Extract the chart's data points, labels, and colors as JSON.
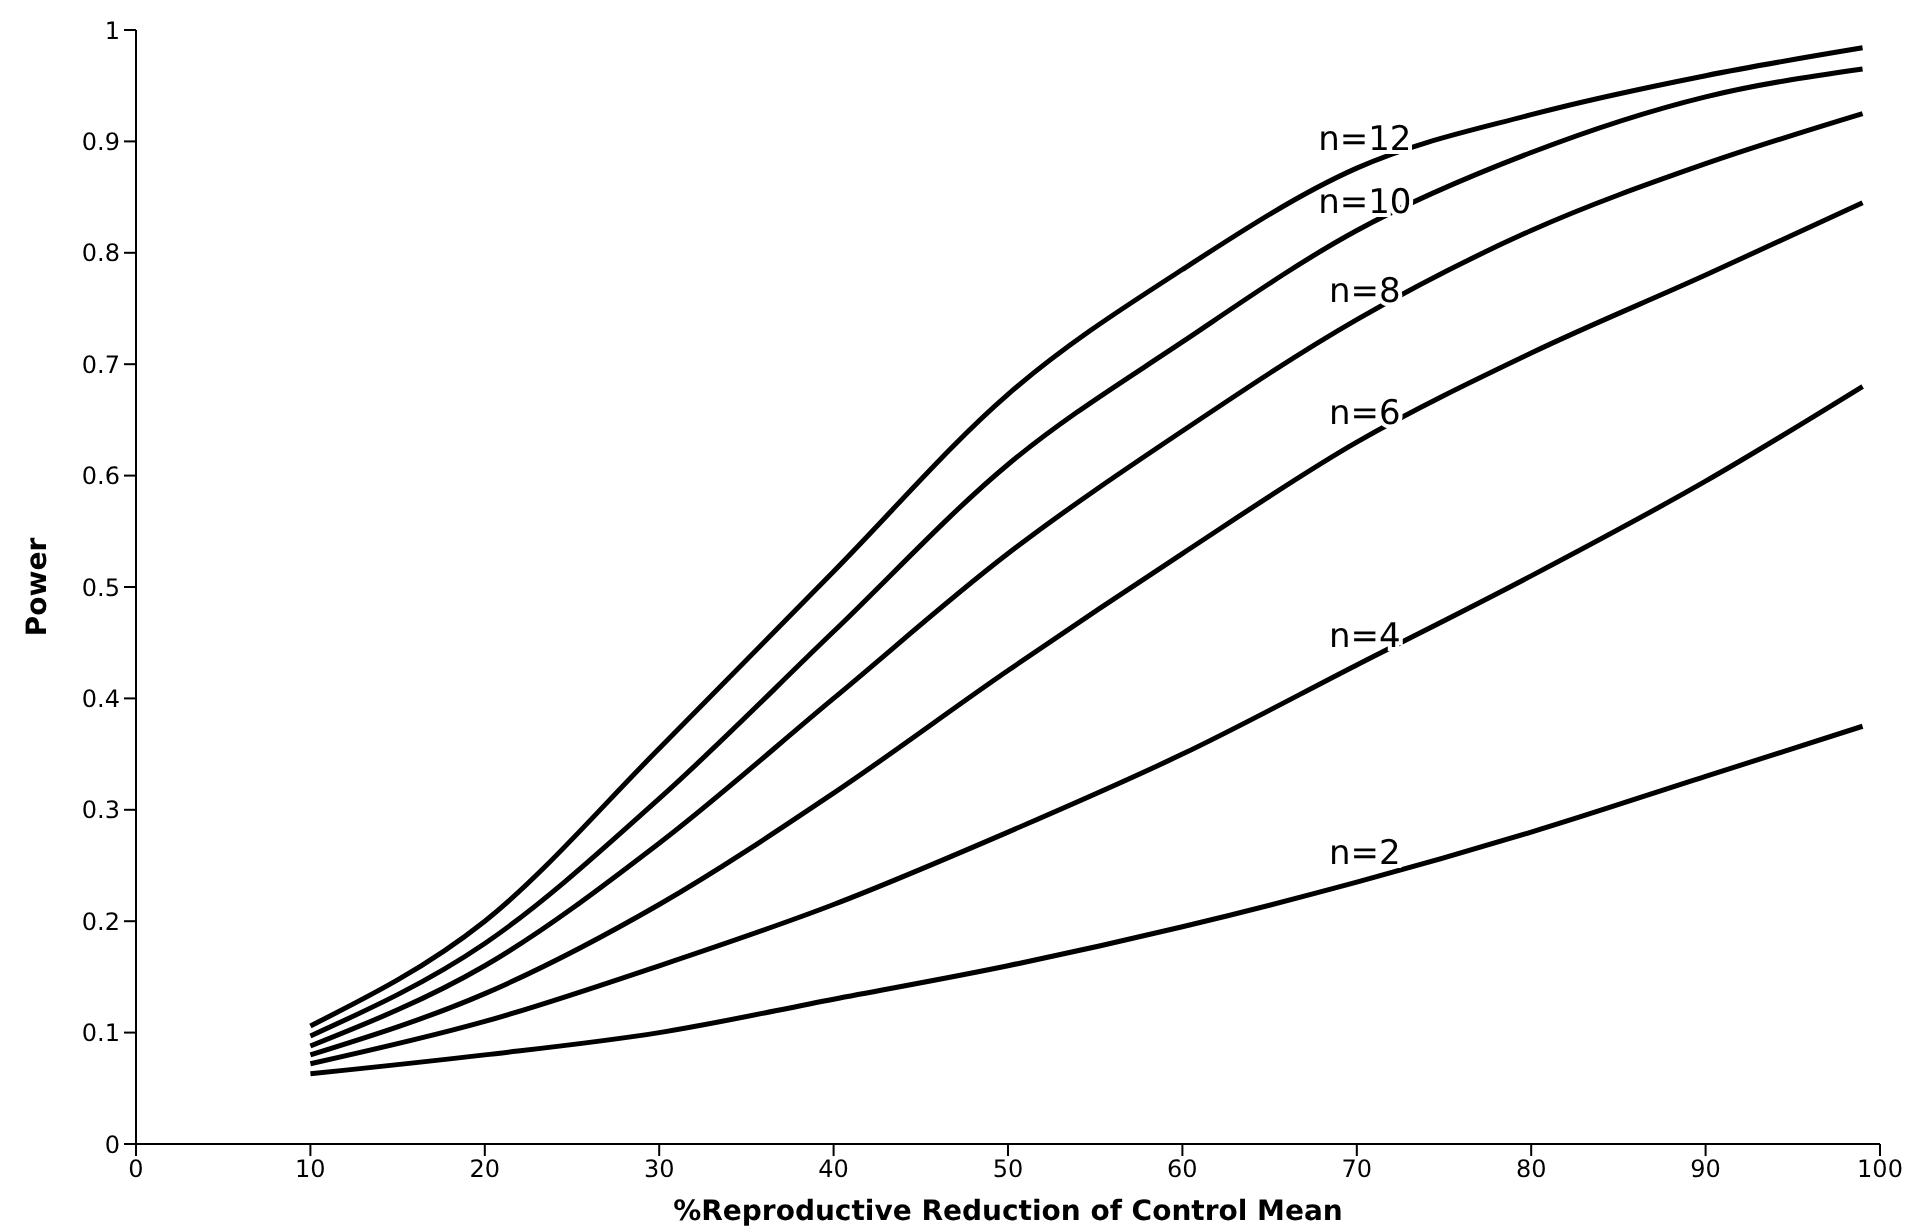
{
  "chart_data": {
    "type": "line",
    "xlabel": "%Reproductive Reduction of Control Mean",
    "ylabel": "Power",
    "x": [
      10,
      20,
      30,
      40,
      50,
      60,
      70,
      80,
      90,
      99
    ],
    "series": [
      {
        "name": "n=12",
        "color": "#000000",
        "values": [
          0.106,
          0.2,
          0.355,
          0.514,
          0.673,
          0.785,
          0.876,
          0.924,
          0.959,
          0.984
        ]
      },
      {
        "name": "n=10",
        "color": "#000000",
        "values": [
          0.097,
          0.18,
          0.31,
          0.46,
          0.61,
          0.72,
          0.82,
          0.89,
          0.94,
          0.965
        ]
      },
      {
        "name": "n=8",
        "color": "#000000",
        "values": [
          0.088,
          0.16,
          0.27,
          0.4,
          0.53,
          0.64,
          0.74,
          0.82,
          0.88,
          0.925
        ]
      },
      {
        "name": "n=6",
        "color": "#000000",
        "values": [
          0.08,
          0.135,
          0.215,
          0.315,
          0.425,
          0.53,
          0.63,
          0.71,
          0.78,
          0.845
        ]
      },
      {
        "name": "n=4",
        "color": "#000000",
        "values": [
          0.072,
          0.11,
          0.16,
          0.215,
          0.28,
          0.35,
          0.43,
          0.51,
          0.595,
          0.68
        ]
      },
      {
        "name": "n=2",
        "color": "#000000",
        "values": [
          0.063,
          0.08,
          0.1,
          0.13,
          0.16,
          0.195,
          0.235,
          0.28,
          0.33,
          0.375
        ]
      }
    ],
    "xlim": [
      0,
      100
    ],
    "xticks": [
      0,
      10,
      20,
      30,
      40,
      50,
      60,
      70,
      80,
      90,
      100
    ],
    "ylim": [
      0,
      1
    ],
    "yticks": [
      0,
      0.1,
      0.2,
      0.3,
      0.4,
      0.5,
      0.6,
      0.7,
      0.8,
      0.9,
      1
    ],
    "grid": false,
    "legend": false,
    "marker": "none",
    "line_style": "solid"
  }
}
